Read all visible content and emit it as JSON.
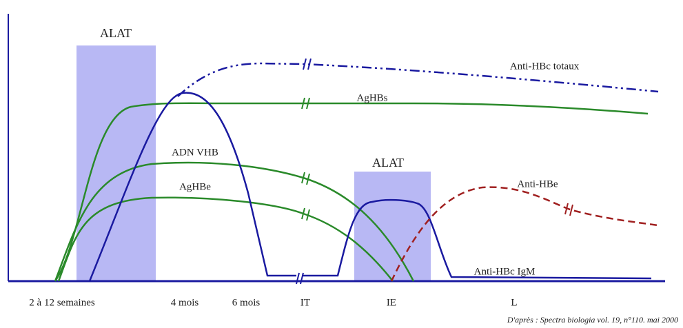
{
  "labels": {
    "alat_1": "ALAT",
    "alat_2": "ALAT",
    "anti_hbc_totaux": "Anti-HBc totaux",
    "aghbs": "AgHBs",
    "adn_vhb": "ADN VHB",
    "aghbe": "AgHBe",
    "anti_hbe": "Anti-HBe",
    "anti_hbc_igm": "Anti-HBc IgM"
  },
  "x_labels": [
    "2 à 12 semaines",
    "4 mois",
    "6 mois",
    "IT",
    "IE",
    "L"
  ],
  "source": "D'après : Spectra biologia vol. 19, n°110. mai 2000"
}
